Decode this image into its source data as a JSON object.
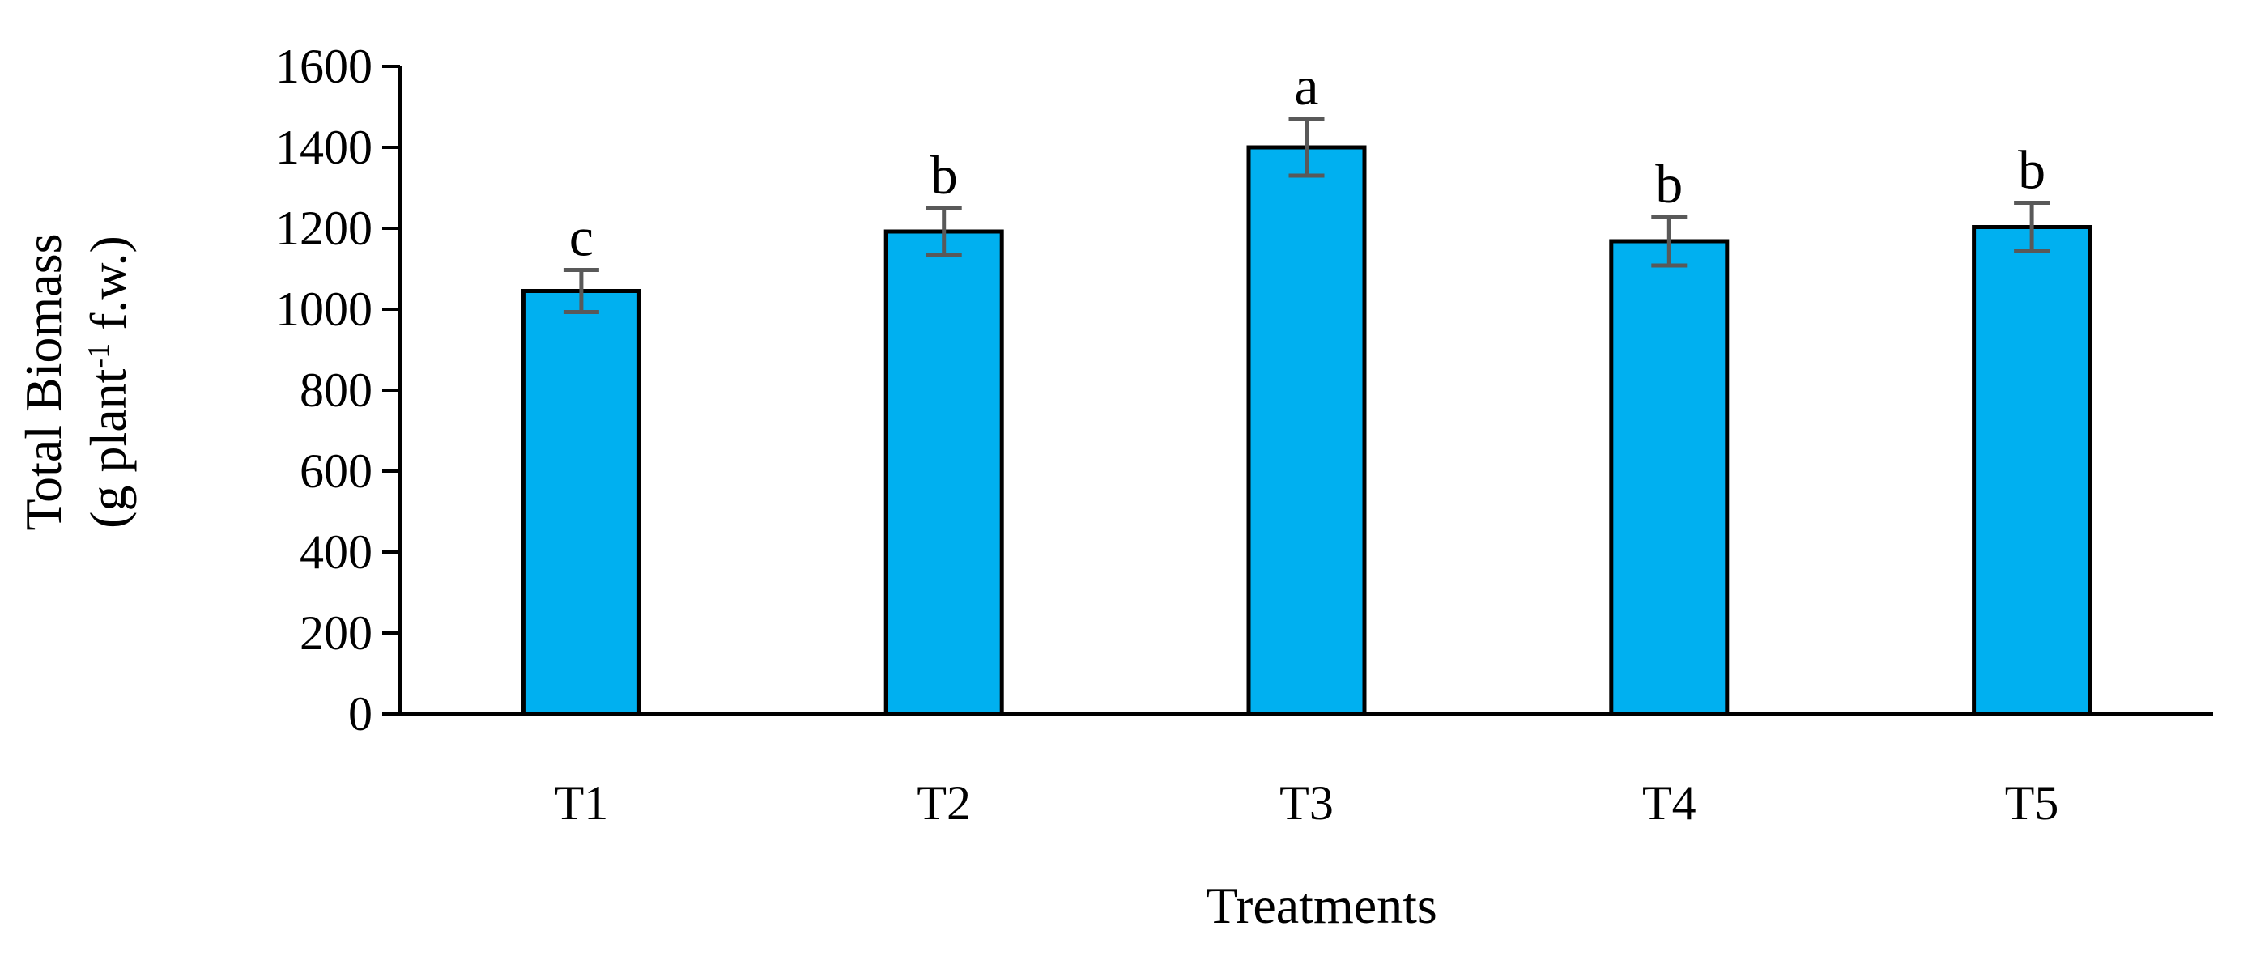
{
  "chart_data": {
    "type": "bar",
    "categories": [
      "T1",
      "T2",
      "T3",
      "T4",
      "T5"
    ],
    "values": [
      1045,
      1192,
      1400,
      1168,
      1203
    ],
    "error": [
      52,
      58,
      70,
      60,
      60
    ],
    "significance_labels": [
      "c",
      "b",
      "a",
      "b",
      "b"
    ],
    "xlabel": "Treatments",
    "ylabel_line1": "Total Biomass",
    "ylabel_line2_prefix": "(g plant",
    "ylabel_superscript": "-1",
    "ylabel_line2_suffix": " f.w.)",
    "ylim": [
      0,
      1600
    ],
    "yticks": [
      "0",
      "200",
      "400",
      "600",
      "800",
      "1000",
      "1200",
      "1400",
      "1600"
    ],
    "grid": false,
    "colors": {
      "bar": "#00b0f0",
      "bar_stroke": "#000000",
      "error_bar": "#595959"
    }
  }
}
